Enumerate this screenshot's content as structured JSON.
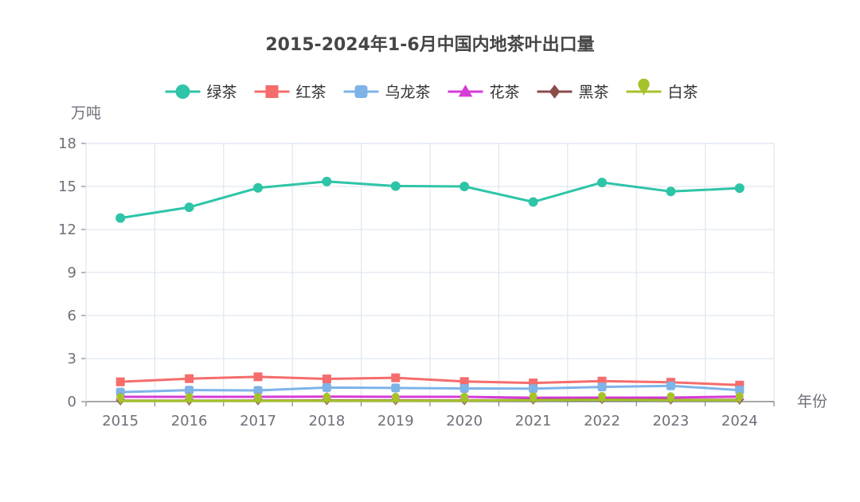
{
  "chart_data": {
    "type": "line",
    "title": "2015-2024年1-6月中国内地茶叶出口量",
    "ylabel": "万吨",
    "xlabel": "年份",
    "ylim": [
      0,
      18
    ],
    "yticks": [
      0,
      3,
      6,
      9,
      12,
      15,
      18
    ],
    "grid": true,
    "legend_position": "top-center",
    "x": [
      "2015",
      "2016",
      "2017",
      "2018",
      "2019",
      "2020",
      "2021",
      "2022",
      "2023",
      "2024"
    ],
    "series": [
      {
        "name": "绿茶",
        "color": "#2ec4a7",
        "marker": "circle",
        "values": [
          12.8,
          13.55,
          14.9,
          15.35,
          15.03,
          15.0,
          13.92,
          15.28,
          14.65,
          14.88
        ]
      },
      {
        "name": "红茶",
        "color": "#f56c6c",
        "marker": "square",
        "values": [
          1.38,
          1.6,
          1.73,
          1.58,
          1.66,
          1.4,
          1.3,
          1.43,
          1.35,
          1.15
        ]
      },
      {
        "name": "乌龙茶",
        "color": "#7eb3e8",
        "marker": "roundRect",
        "values": [
          0.66,
          0.8,
          0.78,
          0.98,
          0.95,
          0.92,
          0.9,
          1.02,
          1.1,
          0.8
        ]
      },
      {
        "name": "花茶",
        "color": "#d63cd6",
        "marker": "triangle",
        "values": [
          0.33,
          0.33,
          0.33,
          0.35,
          0.33,
          0.33,
          0.27,
          0.28,
          0.28,
          0.35
        ]
      },
      {
        "name": "黑茶",
        "color": "#8b4c4c",
        "marker": "diamond",
        "values": [
          0.06,
          0.06,
          0.07,
          0.08,
          0.08,
          0.08,
          0.12,
          0.15,
          0.12,
          0.12
        ]
      },
      {
        "name": "白茶",
        "color": "#a5c22a",
        "marker": "pin",
        "values": [
          0.04,
          0.05,
          0.05,
          0.06,
          0.06,
          0.07,
          0.1,
          0.12,
          0.1,
          0.1
        ]
      }
    ]
  },
  "colors": {
    "axis": "#6e7079",
    "grid": "#e0e6f1",
    "title": "#464646"
  }
}
